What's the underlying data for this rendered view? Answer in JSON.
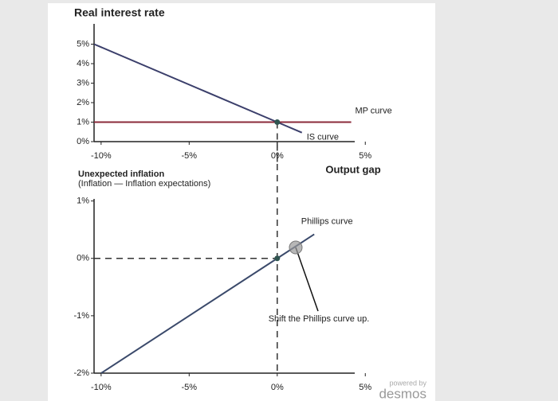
{
  "chart_data": [
    {
      "type": "line",
      "title": "Real interest rate",
      "xlabel": "Output gap",
      "xlim": [
        -10.4,
        4.4
      ],
      "ylim": [
        0,
        6
      ],
      "xticks": [
        {
          "value": -10,
          "label": "-10%"
        },
        {
          "value": -5,
          "label": "-5%"
        },
        {
          "value": 0,
          "label": "0%"
        },
        {
          "value": 5,
          "label": "5%"
        }
      ],
      "yticks": [
        {
          "value": 0,
          "label": "0%"
        },
        {
          "value": 1,
          "label": "1%"
        },
        {
          "value": 2,
          "label": "2%"
        },
        {
          "value": 3,
          "label": "3%"
        },
        {
          "value": 4,
          "label": "4%"
        },
        {
          "value": 5,
          "label": "5%"
        }
      ],
      "vline": 0,
      "series": [
        {
          "name": "IS curve",
          "color": "#3b3f6b",
          "x": [
            -10.4,
            0,
            1.4
          ],
          "values": [
            5,
            1,
            0.46
          ]
        },
        {
          "name": "MP curve",
          "color": "#8b2a3a",
          "x": [
            -10.4,
            4.2
          ],
          "values": [
            1,
            1
          ]
        }
      ]
    },
    {
      "type": "line",
      "title": "Unexpected inflation",
      "subtitle": "(Inflation  —  Inflation expectations)",
      "xlim": [
        -10.4,
        4.4
      ],
      "ylim": [
        -2,
        1.05
      ],
      "xticks": [
        {
          "value": -10,
          "label": "-10%"
        },
        {
          "value": -5,
          "label": "-5%"
        },
        {
          "value": 0,
          "label": "0%"
        },
        {
          "value": 5,
          "label": "5%"
        }
      ],
      "yticks": [
        {
          "value": -2,
          "label": "-2%"
        },
        {
          "value": -1,
          "label": "-1%"
        },
        {
          "value": 0,
          "label": "0%"
        },
        {
          "value": 1,
          "label": "1%"
        }
      ],
      "vline": 0,
      "hline": 0,
      "series": [
        {
          "name": "Phillips curve",
          "color": "#3b4a6b",
          "x": [
            -10,
            0,
            2.1
          ],
          "values": [
            -2,
            0,
            0.42
          ]
        }
      ],
      "annotation": {
        "text": "Shift the Phillips curve up.",
        "x": 1.05,
        "y": 0.19
      }
    }
  ],
  "footer": {
    "powered": "powered by",
    "brand": "desmos"
  }
}
